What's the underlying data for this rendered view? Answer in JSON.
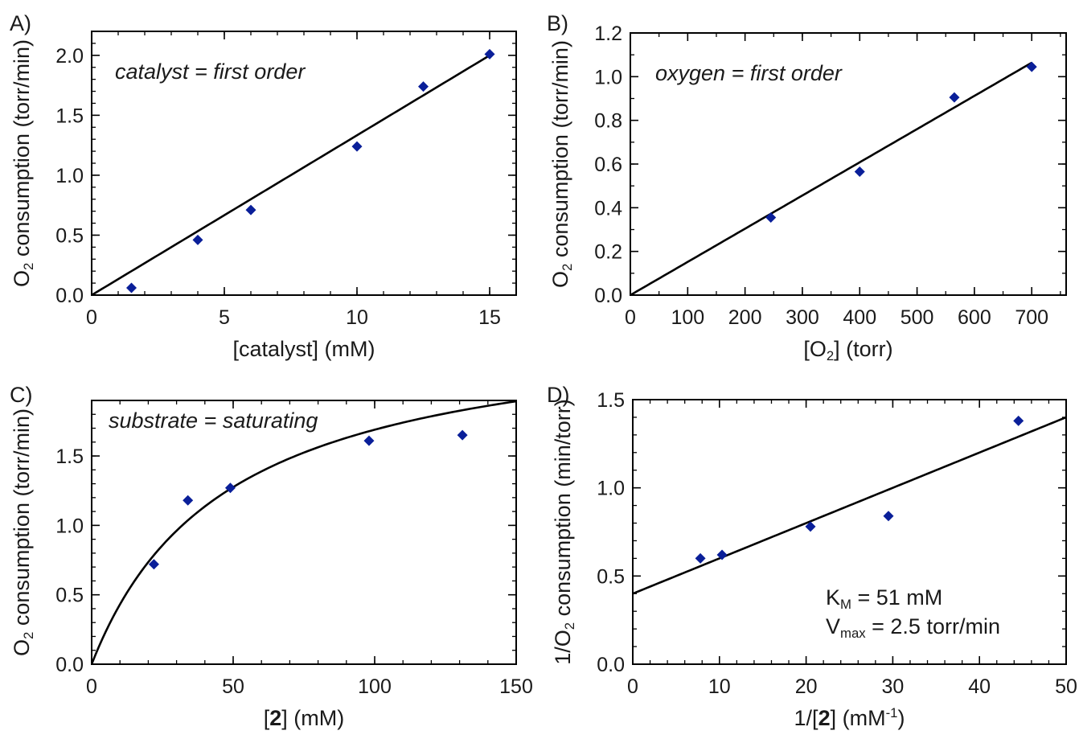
{
  "colors": {
    "marker": "#0a1f99",
    "line": "#000000",
    "axis": "#000000",
    "text": "#1a1a1a"
  },
  "chart_data": [
    {
      "panel_label": "A)",
      "type": "scatter",
      "annotation": "catalyst = first order",
      "xlabel": "[catalyst] (mM)",
      "ylabel_parts": [
        {
          "t": "O"
        },
        {
          "t": "2",
          "sub": true
        },
        {
          "t": " consumption (torr/min)"
        }
      ],
      "xlim": [
        0,
        16
      ],
      "ylim": [
        0,
        2.2
      ],
      "xticks": [
        0,
        5,
        10,
        15
      ],
      "xtick_labels": [
        "0",
        "5",
        "10",
        "15"
      ],
      "yticks": [
        0,
        0.5,
        1.0,
        1.5,
        2.0
      ],
      "ytick_labels": [
        "0.0",
        "0.5",
        "1.0",
        "1.5",
        "2.0"
      ],
      "x_minor_step": 1,
      "y_minor_step": 0.1,
      "points": [
        [
          1.5,
          0.06
        ],
        [
          4.0,
          0.46
        ],
        [
          6.0,
          0.71
        ],
        [
          10.0,
          1.24
        ],
        [
          12.5,
          1.74
        ],
        [
          15.0,
          2.01
        ]
      ],
      "fit": {
        "kind": "linear",
        "slope": 0.1333,
        "intercept": 0.0,
        "x_range": [
          0,
          15
        ]
      }
    },
    {
      "panel_label": "B)",
      "type": "scatter",
      "annotation": "oxygen = first order",
      "xlabel_parts": [
        {
          "t": "[O"
        },
        {
          "t": "2",
          "sub": true
        },
        {
          "t": "] (torr)"
        }
      ],
      "ylabel_parts": [
        {
          "t": "O"
        },
        {
          "t": "2",
          "sub": true
        },
        {
          "t": " consumption (torr/min)"
        }
      ],
      "xlim": [
        0,
        760
      ],
      "ylim": [
        0,
        1.2
      ],
      "xticks": [
        0,
        100,
        200,
        300,
        400,
        500,
        600,
        700
      ],
      "xtick_labels": [
        "0",
        "100",
        "200",
        "300",
        "400",
        "500",
        "600",
        "700"
      ],
      "yticks": [
        0,
        0.2,
        0.4,
        0.6,
        0.8,
        1.0,
        1.2
      ],
      "ytick_labels": [
        "0.0",
        "0.2",
        "0.4",
        "0.6",
        "0.8",
        "1.0",
        "1.2"
      ],
      "x_minor_step": 50,
      "y_minor_step": 0.1,
      "points": [
        [
          245,
          0.355
        ],
        [
          400,
          0.565
        ],
        [
          565,
          0.905
        ],
        [
          700,
          1.045
        ]
      ],
      "fit": {
        "kind": "linear",
        "slope": 0.00152,
        "intercept": 0.0,
        "x_range": [
          0,
          700
        ]
      }
    },
    {
      "panel_label": "C)",
      "type": "scatter",
      "annotation": "substrate = saturating",
      "xlabel_parts": [
        {
          "t": "["
        },
        {
          "t": "2",
          "bold": true
        },
        {
          "t": "] (mM)"
        }
      ],
      "ylabel_parts": [
        {
          "t": "O"
        },
        {
          "t": "2",
          "sub": true
        },
        {
          "t": " consumption (torr/min)"
        }
      ],
      "xlim": [
        0,
        150
      ],
      "ylim": [
        0,
        1.9
      ],
      "xticks": [
        0,
        50,
        100,
        150
      ],
      "xtick_labels": [
        "0",
        "50",
        "100",
        "150"
      ],
      "yticks": [
        0,
        0.5,
        1.0,
        1.5
      ],
      "ytick_labels": [
        "0.0",
        "0.5",
        "1.0",
        "1.5"
      ],
      "x_minor_step": 10,
      "y_minor_step": 0.1,
      "points": [
        [
          22,
          0.72
        ],
        [
          34,
          1.18
        ],
        [
          49,
          1.27
        ],
        [
          98,
          1.61
        ],
        [
          131,
          1.65
        ]
      ],
      "fit": {
        "kind": "michaelis_menten",
        "vmax": 2.5,
        "km": 48,
        "x_range": [
          0,
          150
        ]
      }
    },
    {
      "panel_label": "D)",
      "type": "scatter",
      "annotation_parts": [
        [
          {
            "t": "K"
          },
          {
            "t": "M",
            "sub": true
          },
          {
            "t": " = 51 mM"
          }
        ],
        [
          {
            "t": "V"
          },
          {
            "t": "max",
            "sub": true
          },
          {
            "t": " = 2.5 torr/min"
          }
        ]
      ],
      "xlabel_parts": [
        {
          "t": "1/["
        },
        {
          "t": "2",
          "bold": true
        },
        {
          "t": "] (mM"
        },
        {
          "t": "-1",
          "sup": true
        },
        {
          "t": ")"
        }
      ],
      "ylabel_parts": [
        {
          "t": "1/O"
        },
        {
          "t": "2",
          "sub": true
        },
        {
          "t": " consumption (min/torr)"
        }
      ],
      "xlim": [
        0,
        50
      ],
      "ylim": [
        0,
        1.5
      ],
      "xticks": [
        0,
        10,
        20,
        30,
        40,
        50
      ],
      "xtick_labels": [
        "0",
        "10",
        "20",
        "30",
        "40",
        "50"
      ],
      "yticks": [
        0,
        0.5,
        1.0,
        1.5
      ],
      "ytick_labels": [
        "0.0",
        "0.5",
        "1.0",
        "1.5"
      ],
      "x_minor_step": 2,
      "y_minor_step": 0.1,
      "points": [
        [
          7.8,
          0.6
        ],
        [
          10.3,
          0.62
        ],
        [
          20.5,
          0.78
        ],
        [
          29.5,
          0.84
        ],
        [
          44.5,
          1.38
        ]
      ],
      "fit": {
        "kind": "linear",
        "slope": 0.02,
        "intercept": 0.4,
        "x_range": [
          0,
          50
        ]
      }
    }
  ]
}
